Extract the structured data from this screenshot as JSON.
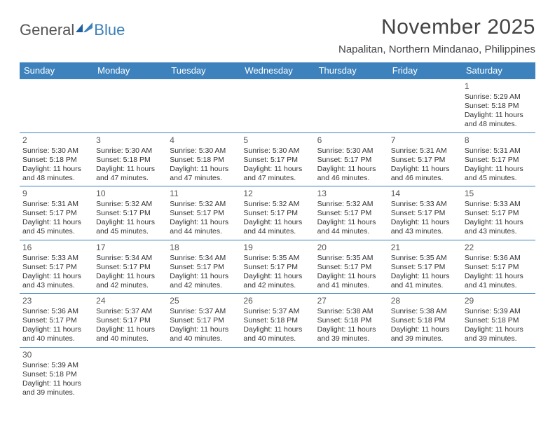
{
  "brand": {
    "general": "General",
    "blue": "Blue"
  },
  "title": "November 2025",
  "location": "Napalitan, Northern Mindanao, Philippines",
  "colors": {
    "header_bg": "#3d82bd",
    "header_text": "#ffffff",
    "row_border": "#3d82bd",
    "text": "#333333",
    "brand_gray": "#555555",
    "brand_blue": "#3b7fb8"
  },
  "day_names": [
    "Sunday",
    "Monday",
    "Tuesday",
    "Wednesday",
    "Thursday",
    "Friday",
    "Saturday"
  ],
  "weeks": [
    [
      null,
      null,
      null,
      null,
      null,
      null,
      {
        "n": "1",
        "sunrise": "5:29 AM",
        "sunset": "5:18 PM",
        "daylight": "11 hours and 48 minutes."
      }
    ],
    [
      {
        "n": "2",
        "sunrise": "5:30 AM",
        "sunset": "5:18 PM",
        "daylight": "11 hours and 48 minutes."
      },
      {
        "n": "3",
        "sunrise": "5:30 AM",
        "sunset": "5:18 PM",
        "daylight": "11 hours and 47 minutes."
      },
      {
        "n": "4",
        "sunrise": "5:30 AM",
        "sunset": "5:18 PM",
        "daylight": "11 hours and 47 minutes."
      },
      {
        "n": "5",
        "sunrise": "5:30 AM",
        "sunset": "5:17 PM",
        "daylight": "11 hours and 47 minutes."
      },
      {
        "n": "6",
        "sunrise": "5:30 AM",
        "sunset": "5:17 PM",
        "daylight": "11 hours and 46 minutes."
      },
      {
        "n": "7",
        "sunrise": "5:31 AM",
        "sunset": "5:17 PM",
        "daylight": "11 hours and 46 minutes."
      },
      {
        "n": "8",
        "sunrise": "5:31 AM",
        "sunset": "5:17 PM",
        "daylight": "11 hours and 45 minutes."
      }
    ],
    [
      {
        "n": "9",
        "sunrise": "5:31 AM",
        "sunset": "5:17 PM",
        "daylight": "11 hours and 45 minutes."
      },
      {
        "n": "10",
        "sunrise": "5:32 AM",
        "sunset": "5:17 PM",
        "daylight": "11 hours and 45 minutes."
      },
      {
        "n": "11",
        "sunrise": "5:32 AM",
        "sunset": "5:17 PM",
        "daylight": "11 hours and 44 minutes."
      },
      {
        "n": "12",
        "sunrise": "5:32 AM",
        "sunset": "5:17 PM",
        "daylight": "11 hours and 44 minutes."
      },
      {
        "n": "13",
        "sunrise": "5:32 AM",
        "sunset": "5:17 PM",
        "daylight": "11 hours and 44 minutes."
      },
      {
        "n": "14",
        "sunrise": "5:33 AM",
        "sunset": "5:17 PM",
        "daylight": "11 hours and 43 minutes."
      },
      {
        "n": "15",
        "sunrise": "5:33 AM",
        "sunset": "5:17 PM",
        "daylight": "11 hours and 43 minutes."
      }
    ],
    [
      {
        "n": "16",
        "sunrise": "5:33 AM",
        "sunset": "5:17 PM",
        "daylight": "11 hours and 43 minutes."
      },
      {
        "n": "17",
        "sunrise": "5:34 AM",
        "sunset": "5:17 PM",
        "daylight": "11 hours and 42 minutes."
      },
      {
        "n": "18",
        "sunrise": "5:34 AM",
        "sunset": "5:17 PM",
        "daylight": "11 hours and 42 minutes."
      },
      {
        "n": "19",
        "sunrise": "5:35 AM",
        "sunset": "5:17 PM",
        "daylight": "11 hours and 42 minutes."
      },
      {
        "n": "20",
        "sunrise": "5:35 AM",
        "sunset": "5:17 PM",
        "daylight": "11 hours and 41 minutes."
      },
      {
        "n": "21",
        "sunrise": "5:35 AM",
        "sunset": "5:17 PM",
        "daylight": "11 hours and 41 minutes."
      },
      {
        "n": "22",
        "sunrise": "5:36 AM",
        "sunset": "5:17 PM",
        "daylight": "11 hours and 41 minutes."
      }
    ],
    [
      {
        "n": "23",
        "sunrise": "5:36 AM",
        "sunset": "5:17 PM",
        "daylight": "11 hours and 40 minutes."
      },
      {
        "n": "24",
        "sunrise": "5:37 AM",
        "sunset": "5:17 PM",
        "daylight": "11 hours and 40 minutes."
      },
      {
        "n": "25",
        "sunrise": "5:37 AM",
        "sunset": "5:17 PM",
        "daylight": "11 hours and 40 minutes."
      },
      {
        "n": "26",
        "sunrise": "5:37 AM",
        "sunset": "5:18 PM",
        "daylight": "11 hours and 40 minutes."
      },
      {
        "n": "27",
        "sunrise": "5:38 AM",
        "sunset": "5:18 PM",
        "daylight": "11 hours and 39 minutes."
      },
      {
        "n": "28",
        "sunrise": "5:38 AM",
        "sunset": "5:18 PM",
        "daylight": "11 hours and 39 minutes."
      },
      {
        "n": "29",
        "sunrise": "5:39 AM",
        "sunset": "5:18 PM",
        "daylight": "11 hours and 39 minutes."
      }
    ],
    [
      {
        "n": "30",
        "sunrise": "5:39 AM",
        "sunset": "5:18 PM",
        "daylight": "11 hours and 39 minutes."
      },
      null,
      null,
      null,
      null,
      null,
      null
    ]
  ],
  "labels": {
    "sunrise_prefix": "Sunrise: ",
    "sunset_prefix": "Sunset: ",
    "daylight_prefix": "Daylight: "
  }
}
